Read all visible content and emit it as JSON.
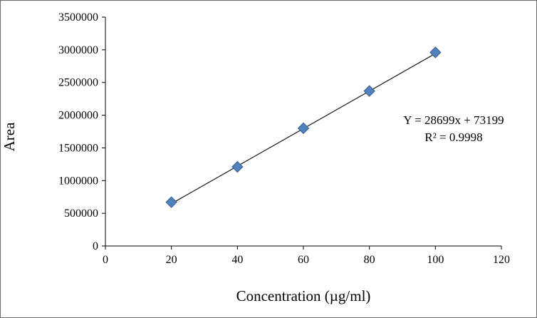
{
  "chart_data": {
    "type": "scatter",
    "title": "",
    "xlabel": "Concentration (µg/ml)",
    "ylabel": "Area",
    "x": [
      20,
      40,
      60,
      80,
      100
    ],
    "y": [
      670000,
      1210000,
      1800000,
      2370000,
      2960000
    ],
    "trendline": {
      "slope": 28699,
      "intercept": 73199,
      "x_start": 20,
      "x_end": 101
    },
    "equation_label": "Y = 28699x + 73199",
    "r_squared_label": "R² = 0.9998",
    "xlim": [
      0,
      120
    ],
    "ylim": [
      0,
      3500000
    ],
    "x_ticks": [
      0,
      20,
      40,
      60,
      80,
      100,
      120
    ],
    "y_ticks": [
      0,
      500000,
      1000000,
      1500000,
      2000000,
      2500000,
      3000000,
      3500000
    ],
    "grid": false,
    "legend": "none",
    "marker": {
      "shape": "diamond",
      "fill_color": "#4F81BD",
      "edge_color": "#385D8A"
    },
    "line_color": "#1a1a1a",
    "border_color": "#6e6e6e",
    "background_color": "#ffffff"
  }
}
